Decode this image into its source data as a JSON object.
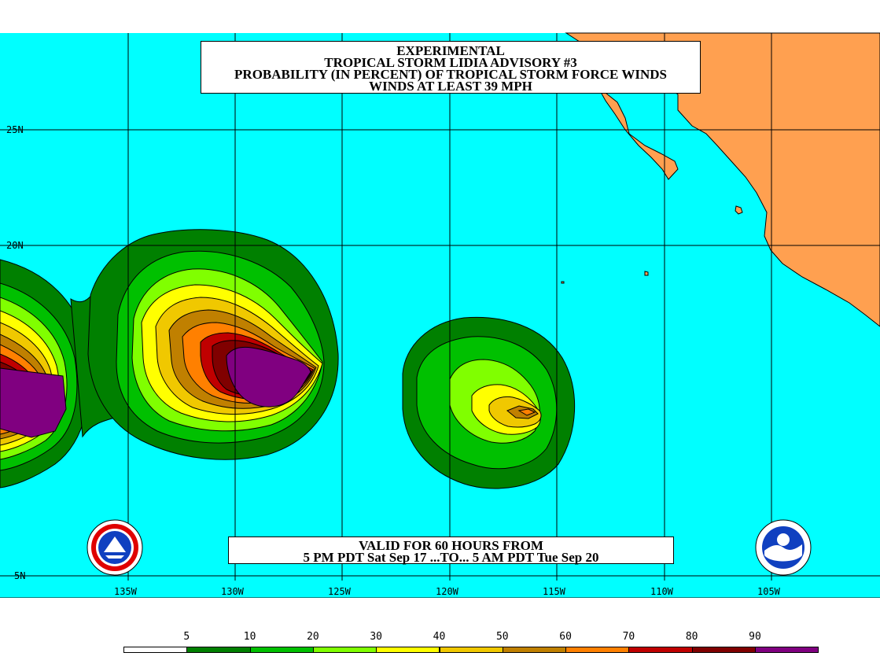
{
  "title": {
    "line1": "EXPERIMENTAL",
    "line2": "TROPICAL STORM LIDIA ADVISORY #3",
    "line3": "PROBABILITY (IN PERCENT) OF TROPICAL STORM FORCE WINDS",
    "line4": "WINDS AT LEAST 39 MPH"
  },
  "valid": {
    "line1": "VALID FOR 60 HOURS FROM",
    "line2": "5 PM PDT Sat Sep 17 ...TO... 5 AM PDT Tue Sep 20"
  },
  "latitude_labels": [
    "25N",
    "20N",
    "5N"
  ],
  "longitude_labels": [
    "135W",
    "130W",
    "125W",
    "120W",
    "115W",
    "110W",
    "105W"
  ],
  "legend": {
    "values": [
      "5",
      "10",
      "20",
      "30",
      "40",
      "50",
      "60",
      "70",
      "80",
      "90"
    ],
    "colors": [
      "#ffffff",
      "#008000",
      "#00c000",
      "#80ff00",
      "#ffff00",
      "#f0c800",
      "#c08000",
      "#ff8000",
      "#c00000",
      "#800000",
      "#800080"
    ]
  },
  "colors": {
    "ocean": "#00ffff",
    "land": "#ffa050",
    "grid": "#000000"
  },
  "logos": [
    "nws-logo-icon",
    "noaa-logo-icon"
  ]
}
